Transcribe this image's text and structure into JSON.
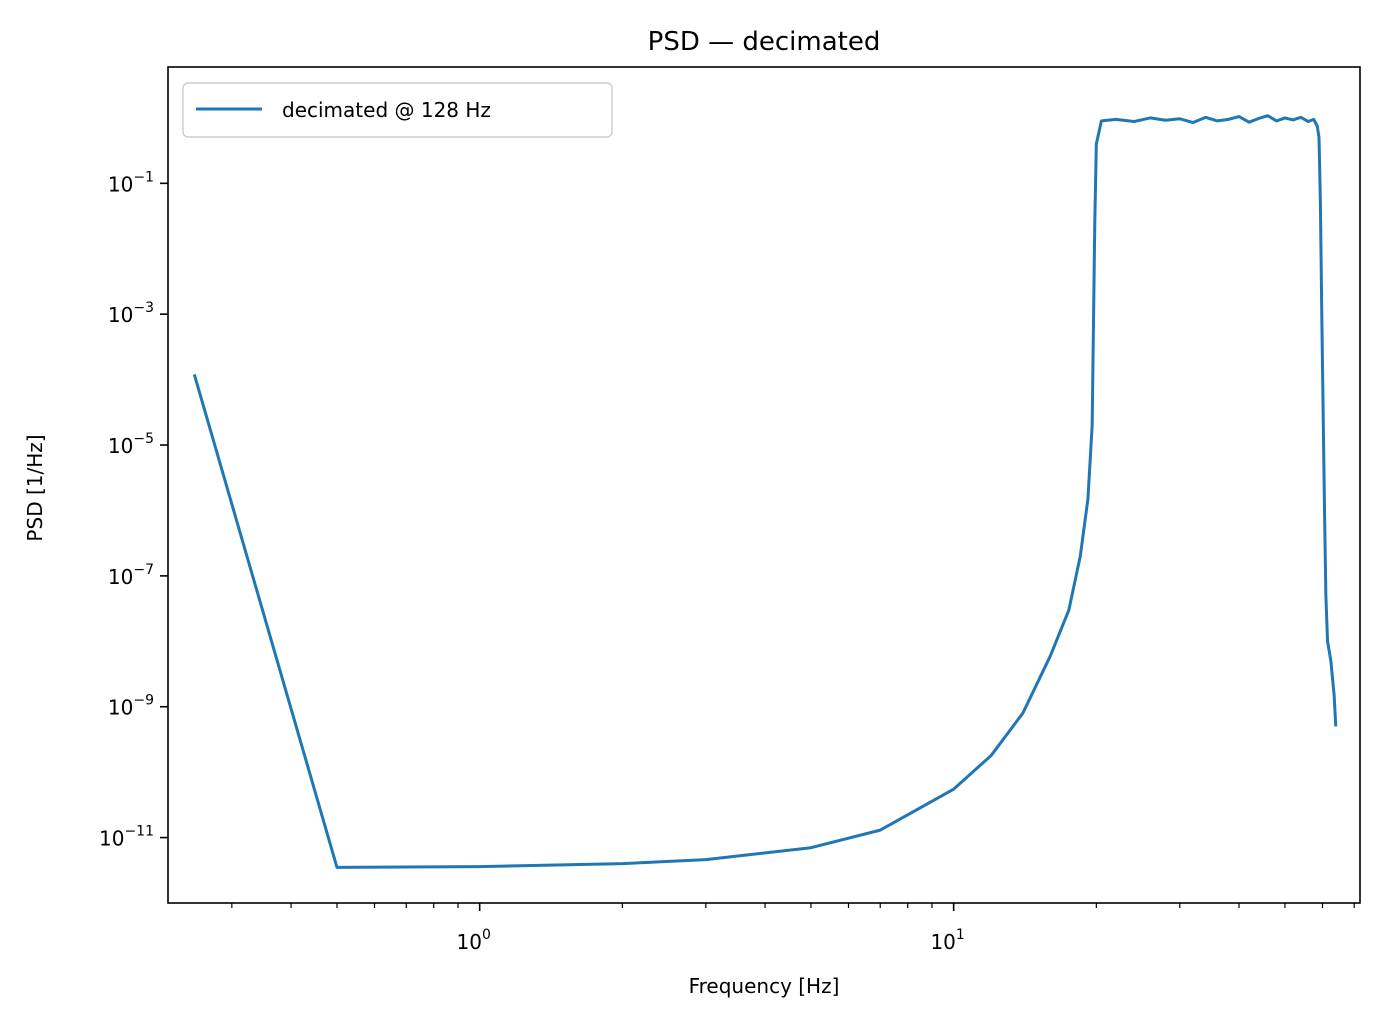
{
  "chart_data": {
    "type": "line",
    "title": "PSD — decimated",
    "xlabel": "Frequency [Hz]",
    "ylabel": "PSD [1/Hz]",
    "xscale": "log",
    "yscale": "log",
    "xlim": [
      0.22,
      72
    ],
    "ylim": [
      1e-12,
      6
    ],
    "grid": false,
    "legend_position": "upper-left",
    "x_ticks": [
      {
        "value": 1,
        "base": "10",
        "exp": "0"
      },
      {
        "value": 10,
        "base": "10",
        "exp": "1"
      }
    ],
    "y_ticks": [
      {
        "value": 0.1,
        "base": "10",
        "exp": "−1"
      },
      {
        "value": 0.001,
        "base": "10",
        "exp": "−3"
      },
      {
        "value": 1e-05,
        "base": "10",
        "exp": "−5"
      },
      {
        "value": 1e-07,
        "base": "10",
        "exp": "−7"
      },
      {
        "value": 1e-09,
        "base": "10",
        "exp": "−9"
      },
      {
        "value": 1e-11,
        "base": "10",
        "exp": "−11"
      }
    ],
    "series": [
      {
        "name": "decimated @ 128 Hz",
        "color": "#1f77b4",
        "x": [
          0.25,
          0.5,
          1.0,
          2.0,
          3.0,
          5.0,
          7.0,
          10.0,
          12.0,
          14.0,
          16.0,
          17.5,
          18.5,
          19.2,
          19.6,
          19.85,
          20.0,
          20.5,
          22,
          24,
          26,
          28,
          30,
          32,
          34,
          36,
          38,
          40,
          42,
          44,
          46,
          48,
          50,
          52,
          54,
          56,
          57.5,
          58.5,
          59.0,
          59.4,
          59.8,
          60.2,
          60.6,
          61.0,
          61.5,
          62.5,
          63.5,
          64.0
        ],
        "y": [
          0.00012,
          3.5e-12,
          3.6e-12,
          4e-12,
          4.6e-12,
          7e-12,
          1.3e-11,
          5.5e-11,
          1.8e-10,
          8e-10,
          6e-09,
          3e-08,
          2e-07,
          1.5e-06,
          2e-05,
          0.025,
          0.4,
          0.9,
          0.95,
          0.88,
          1.0,
          0.92,
          0.97,
          0.85,
          1.02,
          0.9,
          0.95,
          1.05,
          0.86,
          0.98,
          1.08,
          0.9,
          1.0,
          0.93,
          1.02,
          0.88,
          0.95,
          0.75,
          0.5,
          0.05,
          0.001,
          3e-05,
          1e-06,
          5e-08,
          1e-08,
          5e-09,
          1.5e-09,
          5e-10
        ]
      }
    ]
  }
}
